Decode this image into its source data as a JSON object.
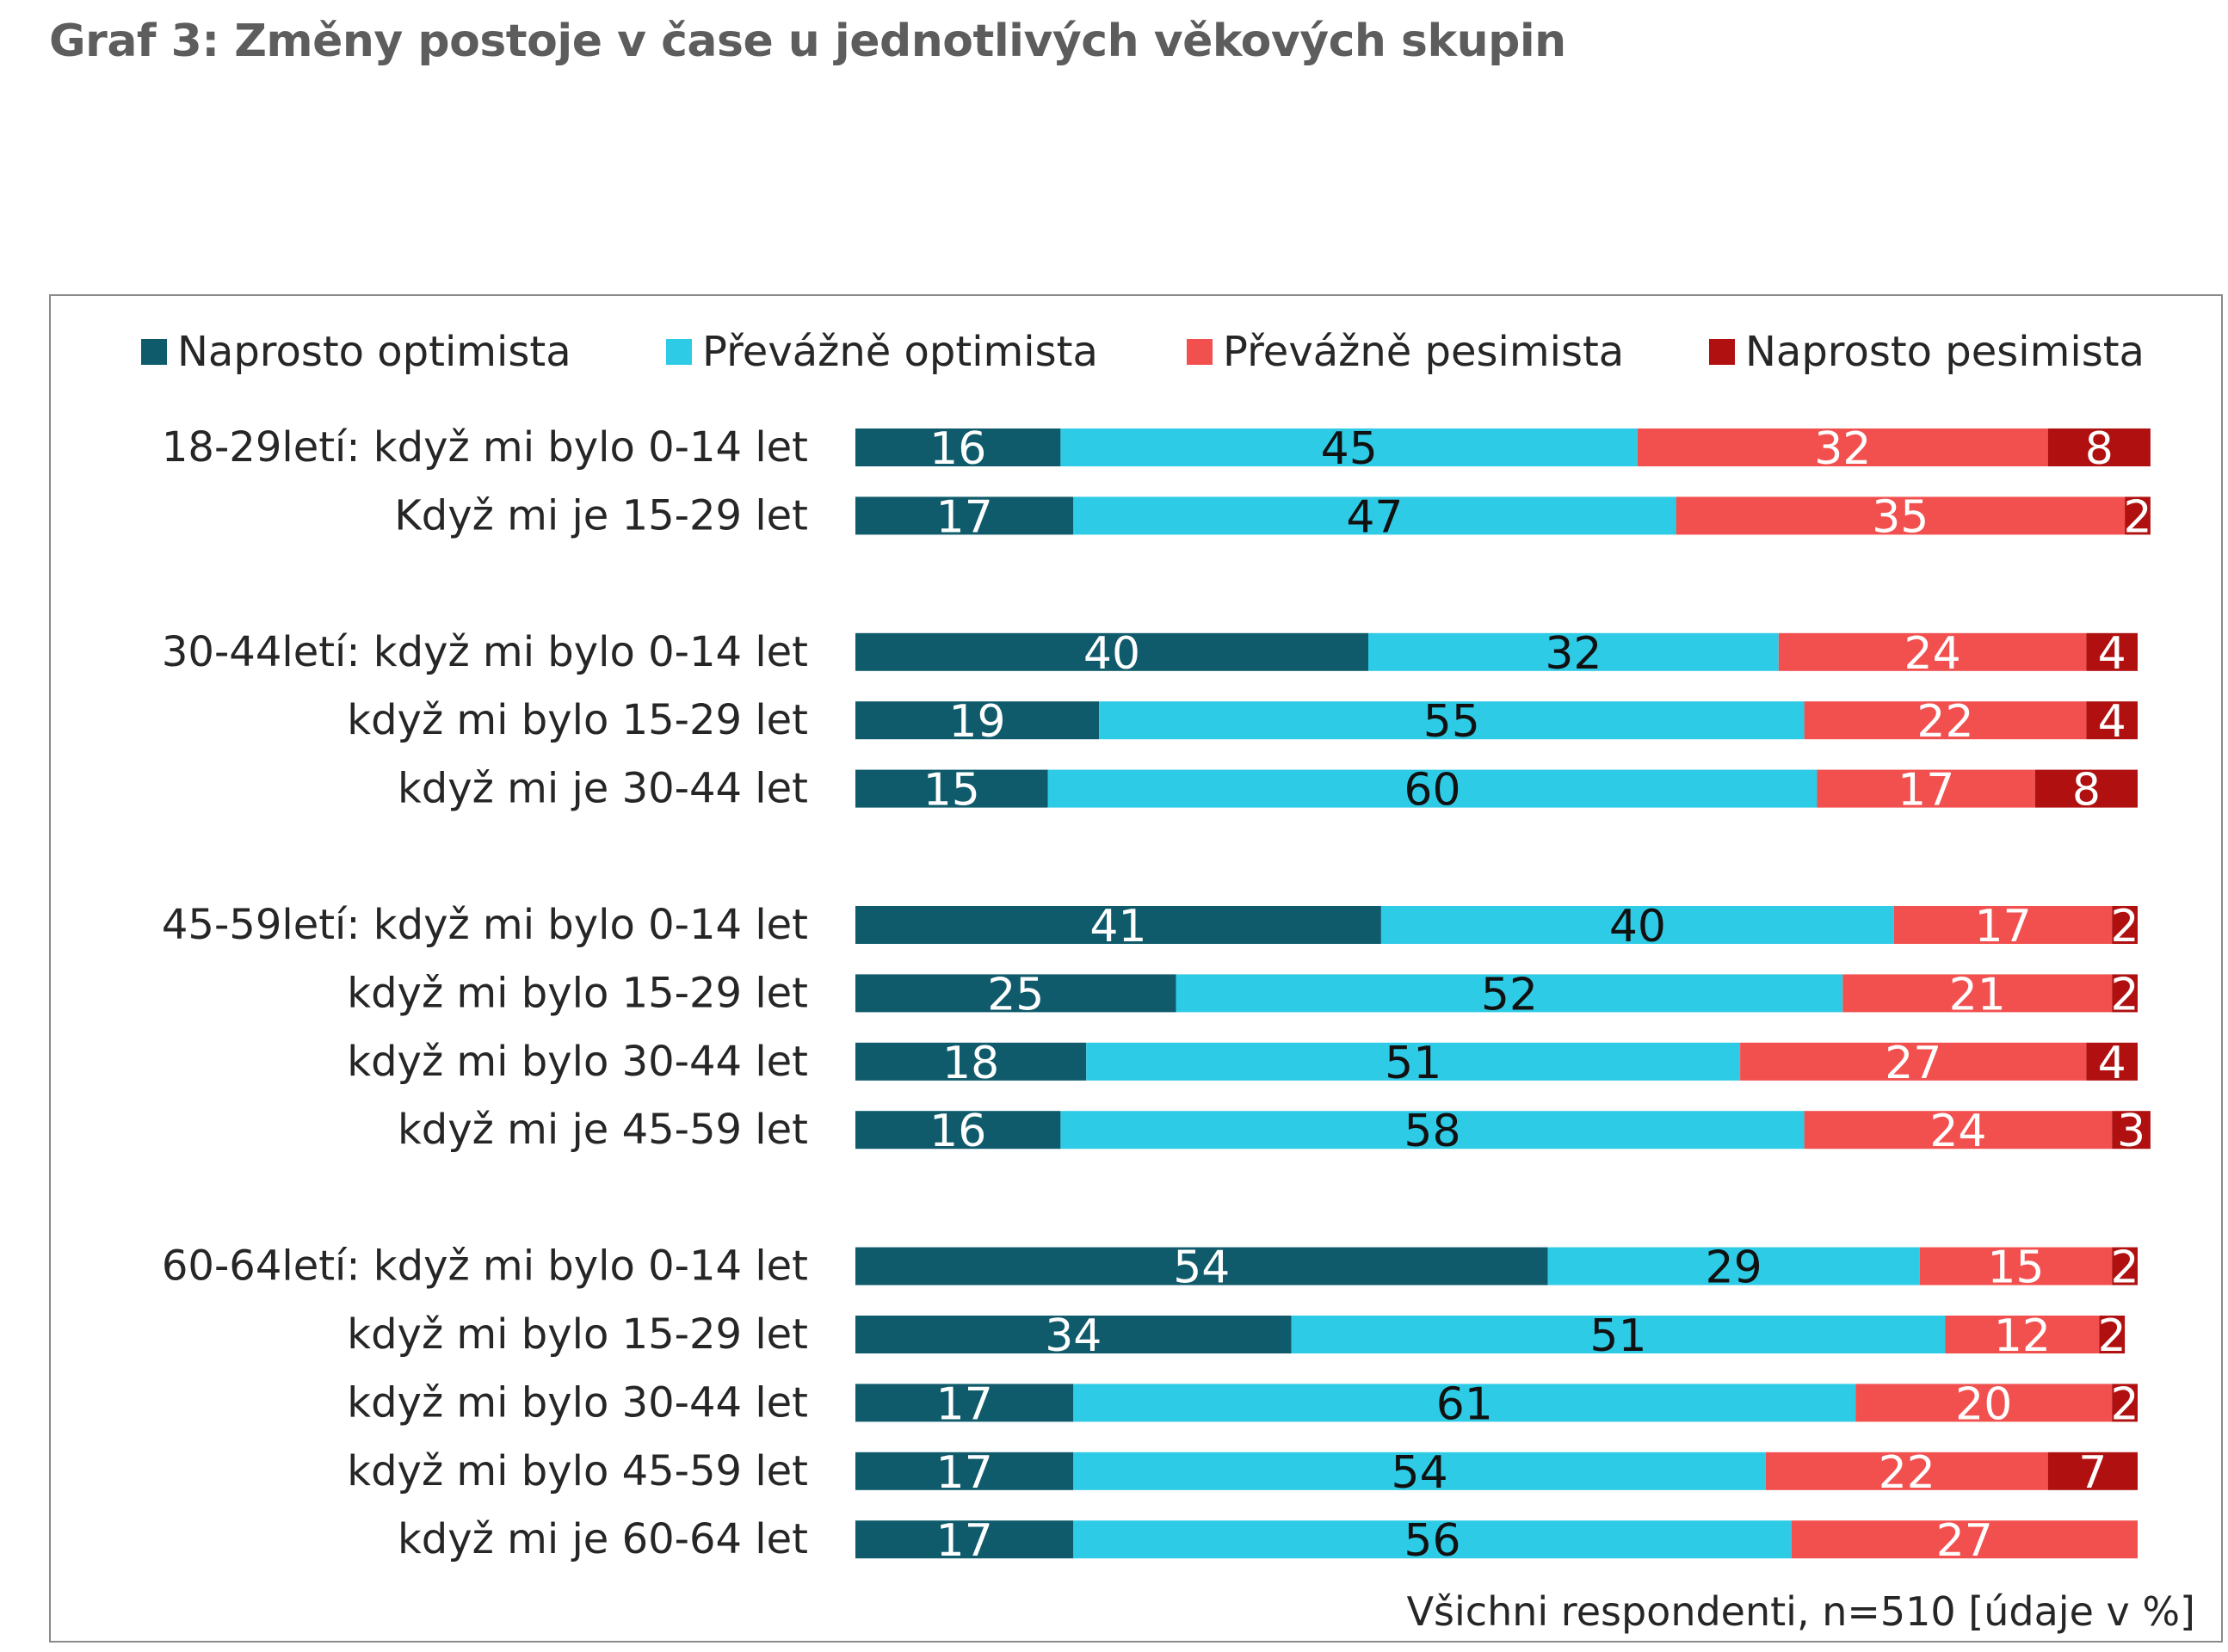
{
  "title": "Graf 3: Změny postoje v čase u jednotlivých věkových skupin",
  "note": "Všichni respondenti, n=510 [údaje v %]",
  "colors": {
    "series": [
      "#0f5b6b",
      "#2ecbe6",
      "#f2504f",
      "#b01010"
    ],
    "value_text": [
      "#ffffff",
      "#111111",
      "#ffffff",
      "#ffffff"
    ]
  },
  "chart_data": {
    "type": "bar",
    "orientation": "horizontal",
    "stacked": true,
    "legend_position": "top",
    "xlim": [
      0,
      100
    ],
    "unit": "%",
    "categories": [
      "18-29letí: když mi bylo 0-14 let",
      "Když mi je 15-29 let",
      "30-44letí: když mi bylo 0-14 let",
      "když mi bylo 15-29 let",
      "když mi je 30-44 let",
      "45-59letí: když mi bylo 0-14 let",
      "když mi bylo 15-29 let",
      "když mi bylo 30-44 let",
      "když mi je 45-59 let",
      "60-64letí: když mi bylo 0-14 let",
      "když mi bylo 15-29 let",
      "když mi bylo 30-44 let",
      "když mi bylo 45-59 let",
      "když mi je 60-64 let"
    ],
    "groups": [
      [
        0,
        1
      ],
      [
        2,
        3,
        4
      ],
      [
        5,
        6,
        7,
        8
      ],
      [
        9,
        10,
        11,
        12,
        13
      ]
    ],
    "series": [
      {
        "name": "Naprosto optimista",
        "values": [
          16,
          17,
          40,
          19,
          15,
          41,
          25,
          18,
          16,
          54,
          34,
          17,
          17,
          17
        ]
      },
      {
        "name": "Převážně optimista",
        "values": [
          45,
          47,
          32,
          55,
          60,
          40,
          52,
          51,
          58,
          29,
          51,
          61,
          54,
          56
        ]
      },
      {
        "name": "Převážně pesimista",
        "values": [
          32,
          35,
          24,
          22,
          17,
          17,
          21,
          27,
          24,
          15,
          12,
          20,
          22,
          27
        ]
      },
      {
        "name": "Naprosto pesimista",
        "values": [
          8,
          2,
          4,
          4,
          8,
          2,
          2,
          4,
          3,
          2,
          2,
          2,
          7,
          0
        ]
      }
    ]
  }
}
